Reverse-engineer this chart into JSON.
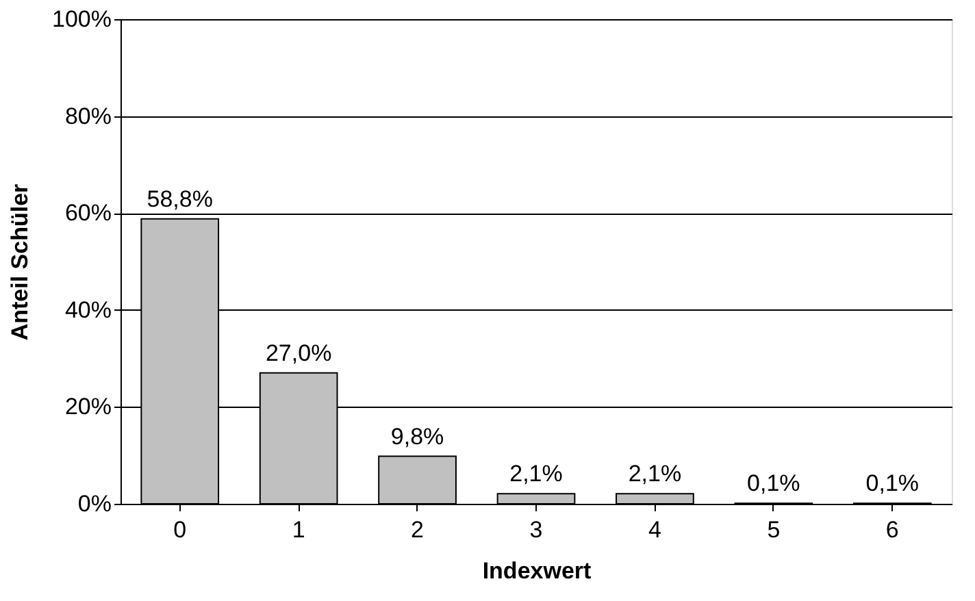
{
  "chart_data": {
    "type": "bar",
    "xlabel": "Indexwert",
    "ylabel": "Anteil Schüler",
    "categories": [
      "0",
      "1",
      "2",
      "3",
      "4",
      "5",
      "6"
    ],
    "values": [
      58.8,
      27.0,
      9.8,
      2.1,
      2.1,
      0.1,
      0.1
    ],
    "value_labels": [
      "58,8%",
      "27,0%",
      "9,8%",
      "2,1%",
      "2,1%",
      "0,1%",
      "0,1%"
    ],
    "color": "#c0c0c0",
    "ylim": [
      0,
      100
    ],
    "yticks": [
      {
        "value": 0,
        "label": "0%"
      },
      {
        "value": 20,
        "label": "20%"
      },
      {
        "value": 40,
        "label": "40%"
      },
      {
        "value": 60,
        "label": "60%"
      },
      {
        "value": 80,
        "label": "80%"
      },
      {
        "value": 100,
        "label": "100%"
      }
    ],
    "grid": "y"
  }
}
